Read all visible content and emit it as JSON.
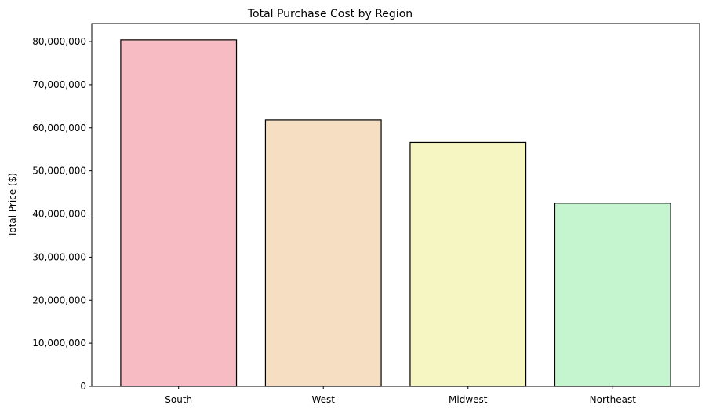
{
  "chart_data": {
    "type": "bar",
    "title": "Total Purchase Cost by Region",
    "xlabel": "",
    "ylabel": "Total Price ($)",
    "categories": [
      "South",
      "West",
      "Midwest",
      "Northeast"
    ],
    "values": [
      80400000,
      61800000,
      56600000,
      42500000
    ],
    "colors": [
      "#f7bcc3",
      "#f5dec2",
      "#f6f6c2",
      "#c4f5cf"
    ],
    "edge_color": "#000000",
    "ylim": [
      0,
      84200000
    ],
    "yticks": [
      0,
      10000000,
      20000000,
      30000000,
      40000000,
      50000000,
      60000000,
      70000000,
      80000000
    ],
    "ytick_labels": [
      "0",
      "10,000,000",
      "20,000,000",
      "30,000,000",
      "40,000,000",
      "50,000,000",
      "60,000,000",
      "70,000,000",
      "80,000,000"
    ],
    "grid": false,
    "legend": "none"
  }
}
